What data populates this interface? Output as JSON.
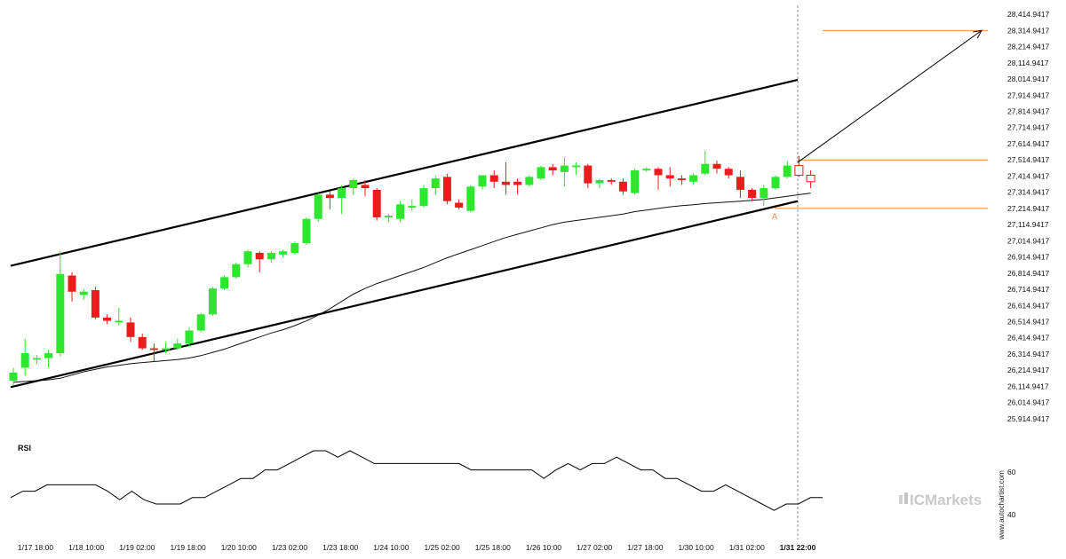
{
  "chart_data": [
    {
      "type": "candlestick",
      "title": "",
      "ylim": [
        25864.9417,
        28464.9417
      ],
      "y_ticks": [
        "28,414.9417",
        "28,314.9417",
        "28,214.9417",
        "28,114.9417",
        "28,014.9417",
        "27,914.9417",
        "27,814.9417",
        "27,714.9417",
        "27,614.9417",
        "27,514.9417",
        "27,414.9417",
        "27,314.9417",
        "27,214.9417",
        "27,114.9417",
        "27,014.9417",
        "26,914.9417",
        "26,814.9417",
        "26,714.9417",
        "26,614.9417",
        "26,514.9417",
        "26,414.9417",
        "26,314.9417",
        "26,214.9417",
        "26,114.9417",
        "26,014.9417",
        "25,914.9417"
      ],
      "x_ticks": [
        "1/17 18:00",
        "1/18 10:00",
        "1/19 02:00",
        "1/19 18:00",
        "1/20 10:00",
        "1/23 02:00",
        "1/23 18:00",
        "1/24 10:00",
        "1/25 02:00",
        "1/25 18:00",
        "1/26 10:00",
        "1/27 02:00",
        "1/27 18:00",
        "1/30 10:00",
        "1/31 02:00",
        "1/31 22:00"
      ],
      "highlighted_x_tick": "1/31 22:00",
      "candles": [
        {
          "o": 26150,
          "h": 26230,
          "l": 26120,
          "c": 26200
        },
        {
          "o": 26230,
          "h": 26410,
          "l": 26180,
          "c": 26320
        },
        {
          "o": 26280,
          "h": 26310,
          "l": 26250,
          "c": 26290
        },
        {
          "o": 26290,
          "h": 26340,
          "l": 26230,
          "c": 26320
        },
        {
          "o": 26320,
          "h": 26950,
          "l": 26300,
          "c": 26810
        },
        {
          "o": 26800,
          "h": 26820,
          "l": 26640,
          "c": 26700
        },
        {
          "o": 26680,
          "h": 26720,
          "l": 26650,
          "c": 26700
        },
        {
          "o": 26710,
          "h": 26730,
          "l": 26530,
          "c": 26540
        },
        {
          "o": 26540,
          "h": 26560,
          "l": 26500,
          "c": 26520
        },
        {
          "o": 26510,
          "h": 26600,
          "l": 26490,
          "c": 26520
        },
        {
          "o": 26510,
          "h": 26540,
          "l": 26390,
          "c": 26420
        },
        {
          "o": 26420,
          "h": 26440,
          "l": 26340,
          "c": 26350
        },
        {
          "o": 26350,
          "h": 26380,
          "l": 26270,
          "c": 26340
        },
        {
          "o": 26340,
          "h": 26390,
          "l": 26320,
          "c": 26350
        },
        {
          "o": 26350,
          "h": 26410,
          "l": 26340,
          "c": 26380
        },
        {
          "o": 26380,
          "h": 26480,
          "l": 26360,
          "c": 26460
        },
        {
          "o": 26460,
          "h": 26570,
          "l": 26450,
          "c": 26560
        },
        {
          "o": 26560,
          "h": 26730,
          "l": 26550,
          "c": 26720
        },
        {
          "o": 26720,
          "h": 26800,
          "l": 26710,
          "c": 26790
        },
        {
          "o": 26790,
          "h": 26880,
          "l": 26780,
          "c": 26870
        },
        {
          "o": 26870,
          "h": 26960,
          "l": 26850,
          "c": 26950
        },
        {
          "o": 26940,
          "h": 26950,
          "l": 26820,
          "c": 26900
        },
        {
          "o": 26900,
          "h": 26950,
          "l": 26880,
          "c": 26940
        },
        {
          "o": 26930,
          "h": 26960,
          "l": 26910,
          "c": 26950
        },
        {
          "o": 26940,
          "h": 27010,
          "l": 26930,
          "c": 27000
        },
        {
          "o": 27000,
          "h": 27160,
          "l": 26990,
          "c": 27150
        },
        {
          "o": 27150,
          "h": 27310,
          "l": 27130,
          "c": 27300
        },
        {
          "o": 27300,
          "h": 27320,
          "l": 27210,
          "c": 27280
        },
        {
          "o": 27280,
          "h": 27360,
          "l": 27180,
          "c": 27340
        },
        {
          "o": 27340,
          "h": 27400,
          "l": 27300,
          "c": 27390
        },
        {
          "o": 27360,
          "h": 27390,
          "l": 27290,
          "c": 27340
        },
        {
          "o": 27330,
          "h": 27340,
          "l": 27140,
          "c": 27160
        },
        {
          "o": 27160,
          "h": 27180,
          "l": 27130,
          "c": 27170
        },
        {
          "o": 27150,
          "h": 27260,
          "l": 27130,
          "c": 27240
        },
        {
          "o": 27220,
          "h": 27270,
          "l": 27200,
          "c": 27230
        },
        {
          "o": 27230,
          "h": 27360,
          "l": 27220,
          "c": 27340
        },
        {
          "o": 27340,
          "h": 27420,
          "l": 27300,
          "c": 27400
        },
        {
          "o": 27410,
          "h": 27430,
          "l": 27240,
          "c": 27260
        },
        {
          "o": 27250,
          "h": 27270,
          "l": 27210,
          "c": 27220
        },
        {
          "o": 27200,
          "h": 27360,
          "l": 27190,
          "c": 27350
        },
        {
          "o": 27350,
          "h": 27420,
          "l": 27330,
          "c": 27420
        },
        {
          "o": 27420,
          "h": 27450,
          "l": 27340,
          "c": 27380
        },
        {
          "o": 27380,
          "h": 27500,
          "l": 27300,
          "c": 27360
        },
        {
          "o": 27380,
          "h": 27400,
          "l": 27300,
          "c": 27360
        },
        {
          "o": 27360,
          "h": 27420,
          "l": 27350,
          "c": 27410
        },
        {
          "o": 27400,
          "h": 27480,
          "l": 27390,
          "c": 27470
        },
        {
          "o": 27470,
          "h": 27490,
          "l": 27420,
          "c": 27450
        },
        {
          "o": 27440,
          "h": 27530,
          "l": 27350,
          "c": 27480
        },
        {
          "o": 27470,
          "h": 27500,
          "l": 27420,
          "c": 27480
        },
        {
          "o": 27480,
          "h": 27490,
          "l": 27340,
          "c": 27370
        },
        {
          "o": 27370,
          "h": 27400,
          "l": 27340,
          "c": 27390
        },
        {
          "o": 27390,
          "h": 27400,
          "l": 27360,
          "c": 27380
        },
        {
          "o": 27380,
          "h": 27400,
          "l": 27300,
          "c": 27320
        },
        {
          "o": 27310,
          "h": 27460,
          "l": 27300,
          "c": 27450
        },
        {
          "o": 27450,
          "h": 27470,
          "l": 27440,
          "c": 27460
        },
        {
          "o": 27460,
          "h": 27470,
          "l": 27330,
          "c": 27420
        },
        {
          "o": 27420,
          "h": 27470,
          "l": 27350,
          "c": 27400
        },
        {
          "o": 27400,
          "h": 27420,
          "l": 27360,
          "c": 27390
        },
        {
          "o": 27380,
          "h": 27430,
          "l": 27360,
          "c": 27420
        },
        {
          "o": 27430,
          "h": 27570,
          "l": 27420,
          "c": 27490
        },
        {
          "o": 27490,
          "h": 27510,
          "l": 27430,
          "c": 27460
        },
        {
          "o": 27460,
          "h": 27470,
          "l": 27400,
          "c": 27420
        },
        {
          "o": 27410,
          "h": 27450,
          "l": 27280,
          "c": 27330
        },
        {
          "o": 27330,
          "h": 27340,
          "l": 27260,
          "c": 27280
        },
        {
          "o": 27280,
          "h": 27360,
          "l": 27230,
          "c": 27340
        },
        {
          "o": 27340,
          "h": 27420,
          "l": 27330,
          "c": 27410
        },
        {
          "o": 27410,
          "h": 27510,
          "l": 27400,
          "c": 27480
        },
        {
          "o": 27480,
          "h": 27540,
          "l": 27410,
          "c": 27420
        },
        {
          "o": 27420,
          "h": 27450,
          "l": 27340,
          "c": 27380
        }
      ],
      "hollow_last": 2,
      "moving_average": [
        26140,
        26145,
        26150,
        26155,
        26165,
        26185,
        26205,
        26220,
        26235,
        26245,
        26255,
        26262,
        26268,
        26274,
        26280,
        26290,
        26305,
        26325,
        26345,
        26370,
        26395,
        26420,
        26445,
        26465,
        26490,
        26520,
        26555,
        26595,
        26640,
        26685,
        26720,
        26750,
        26775,
        26800,
        26825,
        26850,
        26880,
        26910,
        26935,
        26960,
        26985,
        27010,
        27035,
        27055,
        27075,
        27095,
        27115,
        27130,
        27140,
        27150,
        27160,
        27170,
        27180,
        27195,
        27205,
        27215,
        27225,
        27232,
        27238,
        27245,
        27250,
        27255,
        27260,
        27265,
        27270,
        27280,
        27290,
        27300,
        27310
      ],
      "channel": {
        "upper": {
          "start": 26860,
          "end": 28010
        },
        "lower": {
          "start": 26110,
          "end": 27260
        }
      },
      "target_line": 28314.9417,
      "upper_level": 27514.9417,
      "lower_level": 27214.9417,
      "point_label": "A",
      "arrow": {
        "from": 27500,
        "to": 28314.9417
      },
      "colors": {
        "bull": "#2ee62e",
        "bear": "#ec1c1c",
        "channel": "#000000",
        "level": "#f0883c",
        "ma": "#111111"
      }
    },
    {
      "type": "line",
      "title": "RSI",
      "ylim": [
        30,
        75
      ],
      "y_ticks": [
        "60",
        "40"
      ],
      "values": [
        48,
        51,
        51,
        54,
        54,
        54,
        54,
        54,
        51,
        47,
        51,
        47,
        45,
        45,
        45,
        48,
        48,
        51,
        54,
        57,
        57,
        61,
        61,
        64,
        67,
        70,
        70,
        67,
        70,
        67,
        64,
        64,
        64,
        64,
        64,
        64,
        64,
        64,
        61,
        61,
        61,
        61,
        61,
        61,
        57,
        61,
        64,
        61,
        64,
        64,
        67,
        64,
        61,
        61,
        57,
        57,
        54,
        51,
        51,
        54,
        51,
        48,
        45,
        42,
        45,
        45,
        48,
        48
      ]
    }
  ],
  "watermark": "www.autochartist.com",
  "brand": "ICMarkets"
}
